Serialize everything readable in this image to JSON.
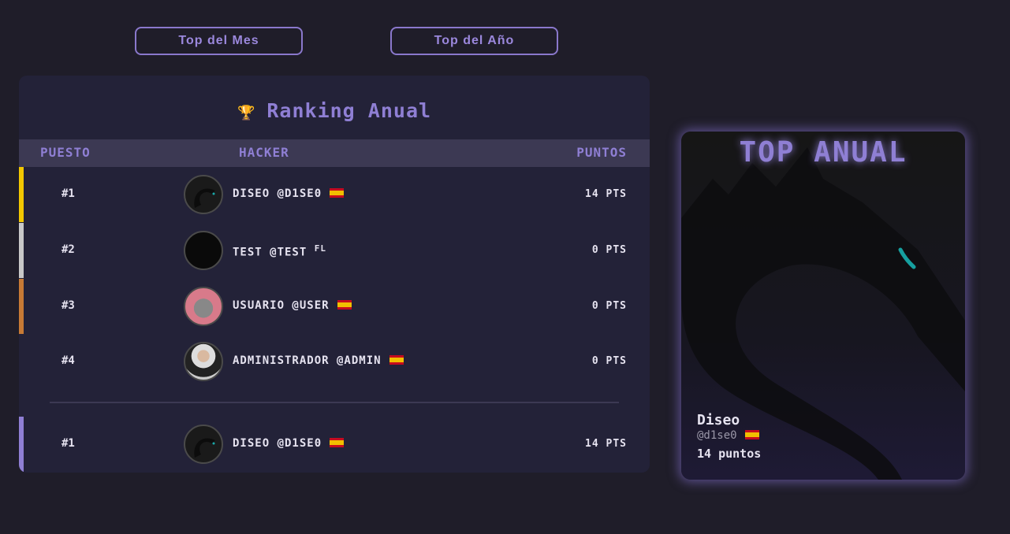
{
  "tabs": [
    {
      "label": "Top del Mes"
    },
    {
      "label": "Top del Año"
    }
  ],
  "ranking": {
    "title": "Ranking Anual",
    "icon": "trophy-icon",
    "columns": {
      "rank": "PUESTO",
      "hacker": "HACKER",
      "points": "PUNTOS"
    },
    "rows": [
      {
        "rank": "#1",
        "name": "DISEO @D1SE0",
        "flag": "es",
        "points": "14 PTS",
        "accent": "#f2c700"
      },
      {
        "rank": "#2",
        "name": "TEST @TEST",
        "flag_text": "FL",
        "points": "0 PTS",
        "accent": "#c8c8c8"
      },
      {
        "rank": "#3",
        "name": "USUARIO @USER",
        "flag": "es",
        "points": "0 PTS",
        "accent": "#c77a35"
      },
      {
        "rank": "#4",
        "name": "ADMINISTRADOR @ADMIN",
        "flag": "es",
        "points": "0 PTS",
        "accent": ""
      }
    ],
    "current_user": {
      "rank": "#1",
      "name": "DISEO @D1SE0",
      "flag": "es",
      "points": "14 PTS",
      "accent": "#8f7fd4"
    }
  },
  "top_card": {
    "title": "TOP ANUAL",
    "name": "Diseo",
    "handle": "@d1se0",
    "flag": "es",
    "points": "14 puntos"
  }
}
